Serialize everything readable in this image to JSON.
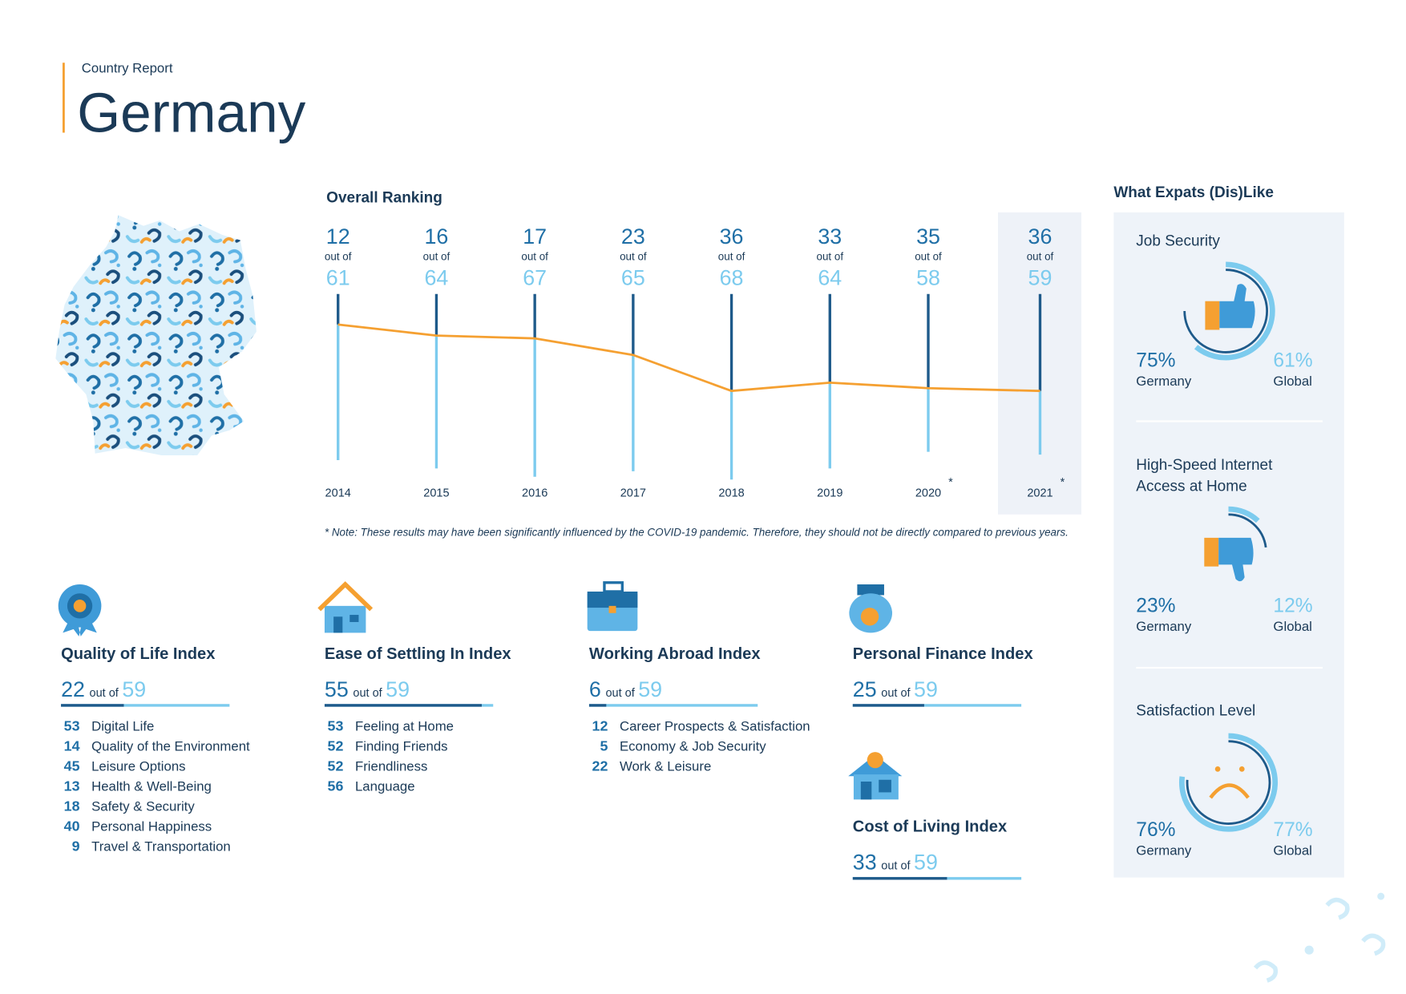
{
  "header": {
    "kicker": "Country Report",
    "title": "Germany"
  },
  "chart_data": {
    "type": "line",
    "title": "Overall Ranking",
    "categories": [
      "2014",
      "2015",
      "2016",
      "2017",
      "2018",
      "2019",
      "2020",
      "2021"
    ],
    "values": [
      12,
      16,
      17,
      23,
      36,
      33,
      35,
      36
    ],
    "totals": [
      61,
      64,
      67,
      65,
      68,
      64,
      58,
      59
    ],
    "total_label": "out of",
    "footnote_marks": [
      null,
      null,
      null,
      null,
      null,
      null,
      "*",
      "*"
    ],
    "note": "* Note: These results may have been significantly influenced by the COVID-19 pandemic. Therefore, they should not be directly compared to previous years.",
    "color": "#f5a031",
    "ylim": [
      0,
      68
    ],
    "inverted": true
  },
  "indices": [
    {
      "title": "Quality of Life Index",
      "rank": 22,
      "total": 59,
      "out_of": "out of",
      "subs": [
        {
          "rank": 53,
          "label": "Digital Life"
        },
        {
          "rank": 14,
          "label": "Quality of the Environment"
        },
        {
          "rank": 45,
          "label": "Leisure Options"
        },
        {
          "rank": 13,
          "label": "Health & Well-Being"
        },
        {
          "rank": 18,
          "label": "Safety & Security"
        },
        {
          "rank": 40,
          "label": "Personal Happiness"
        },
        {
          "rank": 9,
          "label": "Travel & Transportation"
        }
      ]
    },
    {
      "title": "Ease of Settling In Index",
      "rank": 55,
      "total": 59,
      "out_of": "out of",
      "subs": [
        {
          "rank": 53,
          "label": "Feeling at Home"
        },
        {
          "rank": 52,
          "label": "Finding Friends"
        },
        {
          "rank": 52,
          "label": "Friendliness"
        },
        {
          "rank": 56,
          "label": "Language"
        }
      ]
    },
    {
      "title": "Working Abroad Index",
      "rank": 6,
      "total": 59,
      "out_of": "out of",
      "subs": [
        {
          "rank": 12,
          "label": "Career Prospects & Satisfaction"
        },
        {
          "rank": 5,
          "label": "Economy & Job Security"
        },
        {
          "rank": 22,
          "label": "Work & Leisure"
        }
      ]
    },
    {
      "title": "Personal Finance Index",
      "rank": 25,
      "total": 59,
      "out_of": "out of",
      "subs": []
    },
    {
      "title": "Cost of Living Index",
      "rank": 33,
      "total": 59,
      "out_of": "out of",
      "subs": []
    }
  ],
  "likes": {
    "title": "What Expats (Dis)Like",
    "country_name": "Germany",
    "global_name": "Global",
    "items": [
      {
        "label": [
          "Job Security"
        ],
        "germany": {
          "value": 75,
          "label": "75%"
        },
        "global": {
          "value": 61,
          "label": "61%"
        }
      },
      {
        "label": [
          "High-Speed Internet",
          "Access at Home"
        ],
        "germany": {
          "value": 23,
          "label": "23%"
        },
        "global": {
          "value": 12,
          "label": "12%"
        }
      },
      {
        "label": [
          "Satisfaction Level"
        ],
        "germany": {
          "value": 76,
          "label": "76%"
        },
        "global": {
          "value": 77,
          "label": "77%"
        }
      }
    ]
  }
}
